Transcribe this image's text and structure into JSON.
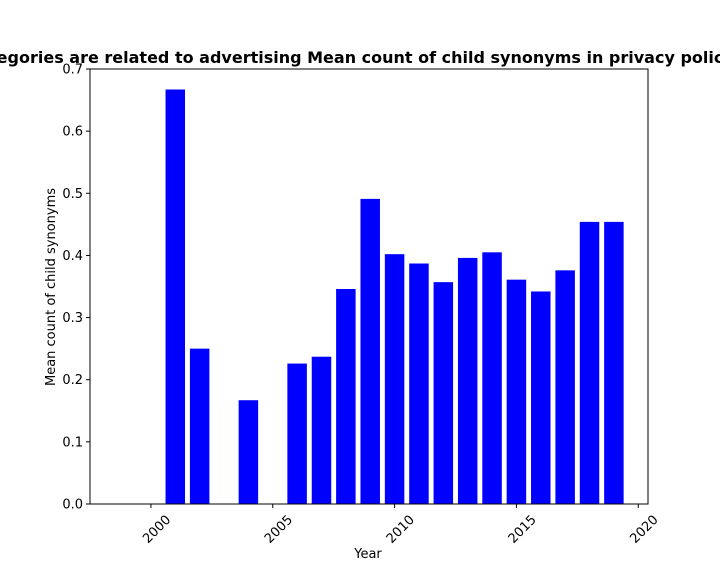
{
  "chart_data": {
    "type": "bar",
    "title": "egories are related to advertising Mean count of child synonyms in privacy polic",
    "xlabel": "Year",
    "ylabel": "Mean count of child synonyms",
    "xlim": [
      1997.5,
      2020.4
    ],
    "ylim": [
      0,
      0.7
    ],
    "x": [
      2001,
      2002,
      2004,
      2006,
      2007,
      2008,
      2009,
      2010,
      2011,
      2012,
      2013,
      2014,
      2015,
      2016,
      2017,
      2018,
      2019
    ],
    "values": [
      0.667,
      0.25,
      0.167,
      0.226,
      0.237,
      0.346,
      0.491,
      0.402,
      0.387,
      0.357,
      0.396,
      0.405,
      0.361,
      0.342,
      0.376,
      0.454,
      0.454
    ],
    "x_ticks": [
      2000,
      2005,
      2010,
      2015,
      2020
    ],
    "x_tick_labels": [
      "2000",
      "2005",
      "2010",
      "2015",
      "2020"
    ],
    "y_ticks": [
      0.0,
      0.1,
      0.2,
      0.3,
      0.4,
      0.5,
      0.6,
      0.7
    ],
    "y_tick_labels": [
      "0.0",
      "0.1",
      "0.2",
      "0.3",
      "0.4",
      "0.5",
      "0.6",
      "0.7"
    ],
    "bar_color": "#0000ff",
    "grid": false,
    "legend": "none"
  }
}
